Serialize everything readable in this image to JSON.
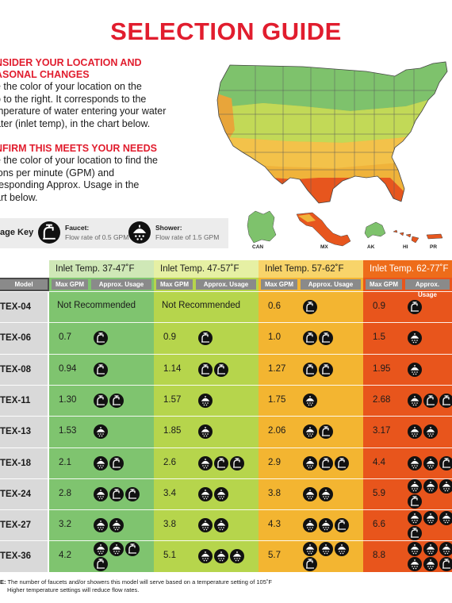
{
  "title": "SELECTION GUIDE",
  "section1": {
    "heading_l1": "NSIDER YOUR LOCATION AND",
    "heading_l2": "ASONAL CHANGES",
    "lines": [
      "e the color of your location on the",
      "p to the right. It corresponds to the",
      "mperature of water entering your water",
      "ater (inlet temp), in the chart below."
    ]
  },
  "section2": {
    "heading": "NFIRM THIS MEETS YOUR NEEDS",
    "lines": [
      "e the color of your location to find the",
      "lons per minute (GPM) and",
      "responding Approx. Usage in the",
      "art below."
    ]
  },
  "map_labels": [
    "CAN",
    "MX",
    "AK",
    "HI",
    "PR"
  ],
  "usage_key": {
    "label": "age Key",
    "faucet_title": "Faucet:",
    "faucet_desc": "Flow rate of 0.5 GPM",
    "faucet_icon": "faucet-icon",
    "shower_title": "Shower:",
    "shower_desc": "Flow rate of 1.5 GPM",
    "shower_icon": "shower-icon"
  },
  "table": {
    "model_header": "Model",
    "max_gpm_header": "Max GPM",
    "usage_header": "Approx. Usage",
    "bands": [
      {
        "label": "Inlet Temp. 37-47˚F",
        "color": "#cfe8b7",
        "row_color": "#7fc46f"
      },
      {
        "label": "Inlet Temp. 47-57˚F",
        "color": "#e6f0a4",
        "row_color": "#b6d54c"
      },
      {
        "label": "Inlet Temp. 57-62˚F",
        "color": "#f8d46a",
        "row_color": "#f3b531"
      },
      {
        "label": "Inlet Temp. 62-77˚F",
        "color": "#ee6c1a",
        "row_color": "#e8551c"
      }
    ],
    "not_recommended": "Not Recommended",
    "rows": [
      {
        "model": "RTEX-04",
        "cells": [
          {
            "gpm": "",
            "nr": true,
            "icons": []
          },
          {
            "gpm": "",
            "nr": true,
            "icons": []
          },
          {
            "gpm": "0.6",
            "icons": [
              "F"
            ]
          },
          {
            "gpm": "0.9",
            "icons": [
              "F"
            ]
          }
        ]
      },
      {
        "model": "RTEX-06",
        "cells": [
          {
            "gpm": "0.7",
            "icons": [
              "F"
            ]
          },
          {
            "gpm": "0.9",
            "icons": [
              "F"
            ]
          },
          {
            "gpm": "1.0",
            "icons": [
              "F",
              "F"
            ]
          },
          {
            "gpm": "1.5",
            "icons": [
              "S"
            ]
          }
        ]
      },
      {
        "model": "RTEX-08",
        "cells": [
          {
            "gpm": "0.94",
            "icons": [
              "F"
            ]
          },
          {
            "gpm": "1.14",
            "icons": [
              "F",
              "F"
            ]
          },
          {
            "gpm": "1.27",
            "icons": [
              "F",
              "F"
            ]
          },
          {
            "gpm": "1.95",
            "icons": [
              "S"
            ]
          }
        ]
      },
      {
        "model": "RTEX-11",
        "cells": [
          {
            "gpm": "1.30",
            "icons": [
              "F",
              "F"
            ]
          },
          {
            "gpm": "1.57",
            "icons": [
              "S"
            ]
          },
          {
            "gpm": "1.75",
            "icons": [
              "S"
            ]
          },
          {
            "gpm": "2.68",
            "icons": [
              "S",
              "F",
              "F"
            ]
          }
        ]
      },
      {
        "model": "RTEX-13",
        "cells": [
          {
            "gpm": "1.53",
            "icons": [
              "S"
            ]
          },
          {
            "gpm": "1.85",
            "icons": [
              "S"
            ]
          },
          {
            "gpm": "2.06",
            "icons": [
              "S",
              "F"
            ]
          },
          {
            "gpm": "3.17",
            "icons": [
              "S",
              "S"
            ]
          }
        ]
      },
      {
        "model": "RTEX-18",
        "cells": [
          {
            "gpm": "2.1",
            "icons": [
              "S",
              "F"
            ]
          },
          {
            "gpm": "2.6",
            "icons": [
              "S",
              "F",
              "F"
            ]
          },
          {
            "gpm": "2.9",
            "icons": [
              "S",
              "F",
              "F"
            ]
          },
          {
            "gpm": "4.4",
            "icons": [
              "S",
              "S",
              "F"
            ]
          }
        ]
      },
      {
        "model": "RTEX-24",
        "cells": [
          {
            "gpm": "2.8",
            "icons": [
              "S",
              "F",
              "F"
            ]
          },
          {
            "gpm": "3.4",
            "icons": [
              "S",
              "S"
            ]
          },
          {
            "gpm": "3.8",
            "icons": [
              "S",
              "S"
            ]
          },
          {
            "gpm": "5.9",
            "icons": [
              "S",
              "S",
              "S",
              "F"
            ]
          }
        ]
      },
      {
        "model": "RTEX-27",
        "cells": [
          {
            "gpm": "3.2",
            "icons": [
              "S",
              "S"
            ]
          },
          {
            "gpm": "3.8",
            "icons": [
              "S",
              "S"
            ]
          },
          {
            "gpm": "4.3",
            "icons": [
              "S",
              "S",
              "F"
            ]
          },
          {
            "gpm": "6.6",
            "icons": [
              "S",
              "S",
              "S",
              "F"
            ]
          }
        ]
      },
      {
        "model": "RTEX-36",
        "cells": [
          {
            "gpm": "4.2",
            "icons": [
              "S",
              "S",
              "F",
              "F"
            ]
          },
          {
            "gpm": "5.1",
            "icons": [
              "S",
              "S",
              "S"
            ]
          },
          {
            "gpm": "5.7",
            "icons": [
              "S",
              "S",
              "S",
              "F"
            ]
          },
          {
            "gpm": "8.8",
            "icons": [
              "S",
              "S",
              "S",
              "S",
              "S",
              "F"
            ]
          }
        ]
      }
    ]
  },
  "note_prefix": "E:",
  "note_line1": " The number of faucets and/or showers this model will serve based on a temperature setting of 105˚F",
  "note_line2": "Higher temperature settings will reduce flow rates."
}
